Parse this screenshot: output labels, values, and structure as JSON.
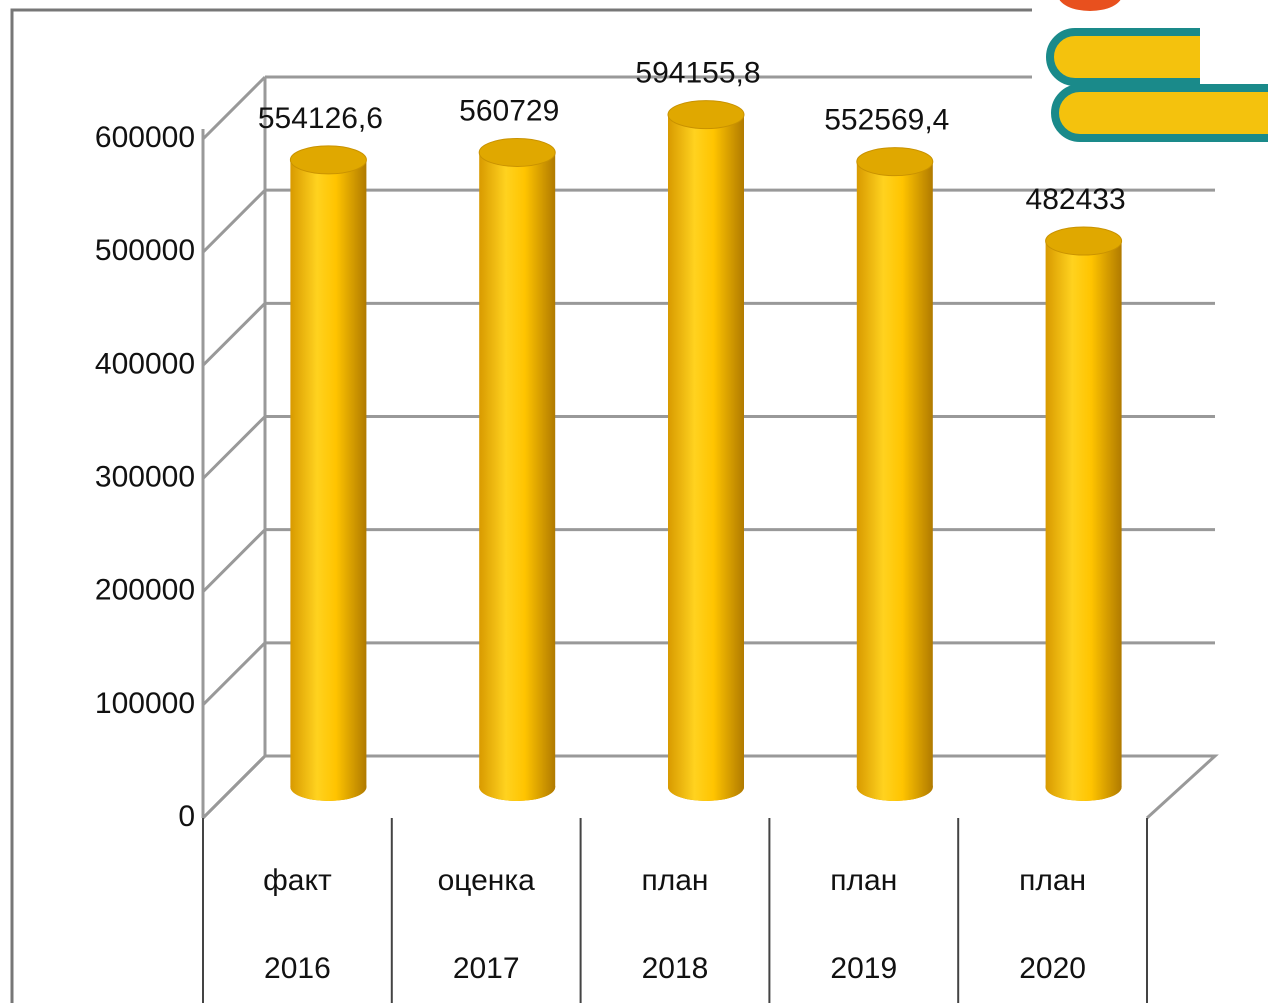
{
  "chart_data": {
    "type": "cylinder-bar",
    "categories": [
      "факт",
      "оценка",
      "план",
      "план",
      "план"
    ],
    "category_years": [
      "2016",
      "2017",
      "2018",
      "2019",
      "2020"
    ],
    "values": [
      554126.6,
      560729,
      594155.8,
      552569.4,
      482433
    ],
    "value_labels": [
      "554126,6",
      "560729",
      "594155,8",
      "552569,4",
      "482433"
    ],
    "color": "#ffc000",
    "ylim": [
      0,
      600000
    ],
    "yticks": [
      0,
      100000,
      200000,
      300000,
      400000,
      500000,
      600000
    ],
    "grid": true
  }
}
